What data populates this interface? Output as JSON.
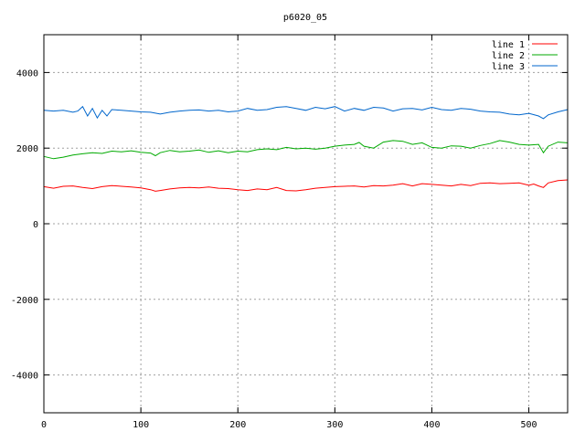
{
  "chart_data": {
    "type": "line",
    "title": "p6020_05",
    "xlabel": "",
    "ylabel": "",
    "xlim": [
      0,
      540
    ],
    "ylim": [
      -5000,
      5000
    ],
    "xticks": [
      0,
      100,
      200,
      300,
      400,
      500
    ],
    "yticks": [
      -4000,
      -2000,
      0,
      2000,
      4000
    ],
    "grid": true,
    "legend_position": "top-right",
    "series": [
      {
        "name": "line 1",
        "color": "#ff0000",
        "x": [
          0,
          10,
          20,
          30,
          40,
          50,
          60,
          70,
          80,
          90,
          100,
          110,
          115,
          120,
          130,
          140,
          150,
          160,
          170,
          180,
          190,
          200,
          210,
          220,
          230,
          240,
          250,
          260,
          270,
          280,
          290,
          300,
          310,
          320,
          330,
          340,
          350,
          360,
          370,
          380,
          390,
          400,
          410,
          420,
          430,
          440,
          450,
          460,
          470,
          480,
          490,
          500,
          505,
          510,
          515,
          520,
          530,
          540
        ],
        "y": [
          980,
          940,
          990,
          1000,
          960,
          930,
          980,
          1010,
          990,
          970,
          950,
          900,
          860,
          880,
          920,
          950,
          960,
          950,
          970,
          940,
          930,
          900,
          880,
          920,
          900,
          960,
          880,
          870,
          900,
          940,
          960,
          980,
          990,
          1000,
          970,
          1010,
          1000,
          1020,
          1060,
          1000,
          1060,
          1040,
          1020,
          1000,
          1040,
          1010,
          1070,
          1080,
          1060,
          1070,
          1080,
          1020,
          1050,
          1000,
          960,
          1080,
          1140,
          1160
        ]
      },
      {
        "name": "line 2",
        "color": "#00aa00",
        "x": [
          0,
          10,
          20,
          30,
          40,
          50,
          60,
          70,
          80,
          90,
          100,
          110,
          115,
          120,
          130,
          140,
          150,
          160,
          170,
          180,
          190,
          200,
          210,
          220,
          230,
          240,
          250,
          260,
          270,
          280,
          290,
          300,
          310,
          320,
          325,
          330,
          340,
          350,
          360,
          370,
          380,
          390,
          400,
          410,
          420,
          430,
          440,
          450,
          460,
          470,
          480,
          490,
          500,
          510,
          515,
          520,
          530,
          540
        ],
        "y": [
          1780,
          1720,
          1760,
          1820,
          1850,
          1880,
          1860,
          1920,
          1900,
          1930,
          1890,
          1870,
          1800,
          1880,
          1940,
          1900,
          1920,
          1950,
          1890,
          1930,
          1880,
          1920,
          1900,
          1960,
          1980,
          1960,
          2020,
          1980,
          2000,
          1970,
          2000,
          2050,
          2080,
          2100,
          2150,
          2050,
          2000,
          2160,
          2200,
          2180,
          2100,
          2140,
          2020,
          2000,
          2060,
          2050,
          2000,
          2070,
          2120,
          2200,
          2160,
          2100,
          2080,
          2100,
          1880,
          2050,
          2160,
          2140
        ]
      },
      {
        "name": "line 3",
        "color": "#0066cc",
        "x": [
          0,
          10,
          20,
          30,
          35,
          40,
          45,
          50,
          55,
          60,
          65,
          70,
          80,
          90,
          100,
          110,
          120,
          130,
          140,
          150,
          160,
          170,
          180,
          190,
          200,
          210,
          220,
          230,
          240,
          250,
          260,
          270,
          280,
          290,
          300,
          310,
          320,
          330,
          340,
          350,
          360,
          370,
          380,
          390,
          400,
          410,
          420,
          430,
          440,
          450,
          460,
          470,
          480,
          490,
          500,
          510,
          515,
          520,
          530,
          540
        ],
        "y": [
          3000,
          2980,
          3000,
          2950,
          2980,
          3100,
          2850,
          3050,
          2800,
          3000,
          2850,
          3020,
          3000,
          2980,
          2960,
          2950,
          2900,
          2950,
          2980,
          3000,
          3010,
          2980,
          3000,
          2960,
          2980,
          3050,
          3000,
          3020,
          3080,
          3100,
          3050,
          3000,
          3080,
          3040,
          3100,
          2980,
          3050,
          3000,
          3080,
          3060,
          2980,
          3040,
          3050,
          3010,
          3080,
          3020,
          3000,
          3050,
          3030,
          2980,
          2960,
          2950,
          2900,
          2880,
          2920,
          2850,
          2780,
          2880,
          2960,
          3020
        ]
      }
    ]
  }
}
